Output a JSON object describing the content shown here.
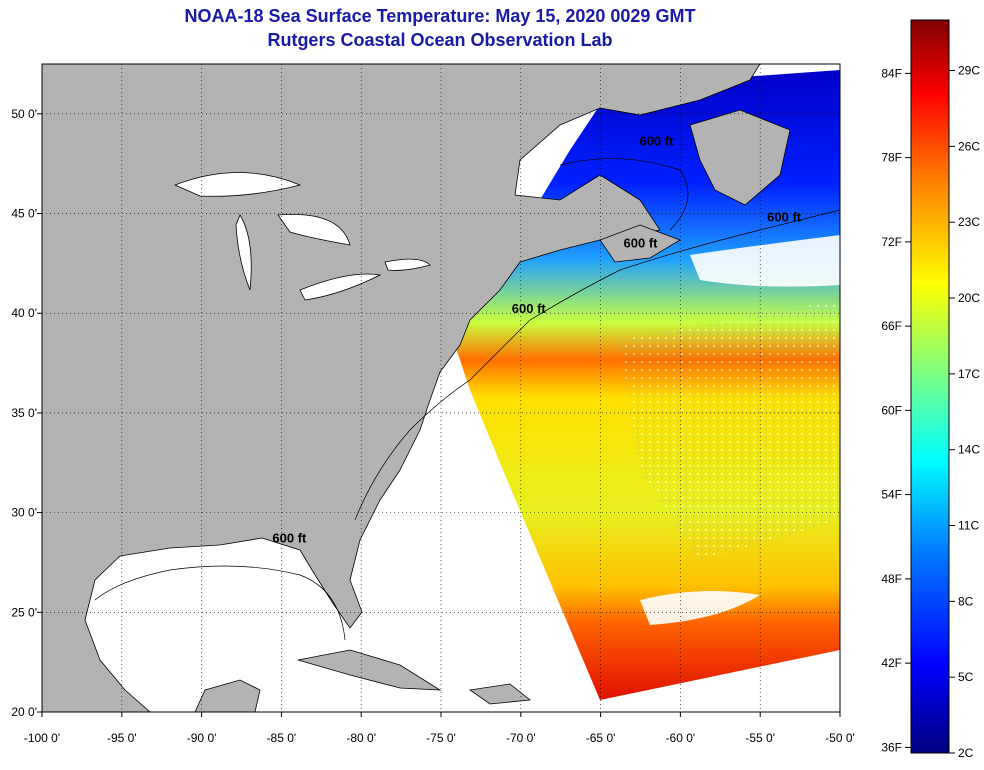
{
  "title": "NOAA-18 Sea Surface Temperature:  May 15, 2020 0029 GMT",
  "subtitle": "Rutgers Coastal Ocean Observation Lab",
  "map": {
    "lon_range": [
      -100,
      -50
    ],
    "lat_range": [
      20,
      52.5
    ],
    "lon_ticks": [
      "-100 0'",
      "-95 0'",
      "-90 0'",
      "-85 0'",
      "-80 0'",
      "-75 0'",
      "-70 0'",
      "-65 0'",
      "-60 0'",
      "-55 0'",
      "-50 0'"
    ],
    "lon_values": [
      -100,
      -95,
      -90,
      -85,
      -80,
      -75,
      -70,
      -65,
      -60,
      -55,
      -50
    ],
    "lat_ticks": [
      "20 0'",
      "25 0'",
      "30 0'",
      "35 0'",
      "40 0'",
      "45 0'",
      "50 0'"
    ],
    "lat_values": [
      20,
      25,
      30,
      35,
      40,
      45,
      50
    ],
    "gridlines": "dotted",
    "land_color": "#b3b3b3",
    "no_data_color": "#ffffff",
    "contour_labels": [
      {
        "text": "600 ft",
        "lon": -61.5,
        "lat": 48.4
      },
      {
        "text": "600 ft",
        "lon": -53.5,
        "lat": 44.6
      },
      {
        "text": "600 ft",
        "lon": -62.5,
        "lat": 43.3
      },
      {
        "text": "600 ft",
        "lon": -69.5,
        "lat": 40.0
      },
      {
        "text": "600 ft",
        "lon": -84.5,
        "lat": 28.5
      }
    ]
  },
  "colorbar": {
    "fahrenheit_labels": [
      "84F",
      "78F",
      "72F",
      "66F",
      "60F",
      "54F",
      "48F",
      "42F",
      "36F"
    ],
    "celsius_labels": [
      "29C",
      "26C",
      "23C",
      "20C",
      "17C",
      "14C",
      "11C",
      "8C",
      "5C",
      "2C"
    ],
    "min_c": 2,
    "max_c": 31,
    "colors": [
      "#00007f",
      "#0000ff",
      "#0080ff",
      "#00ffff",
      "#80ff80",
      "#ffff00",
      "#ff8000",
      "#ff0000",
      "#7f0000"
    ]
  }
}
